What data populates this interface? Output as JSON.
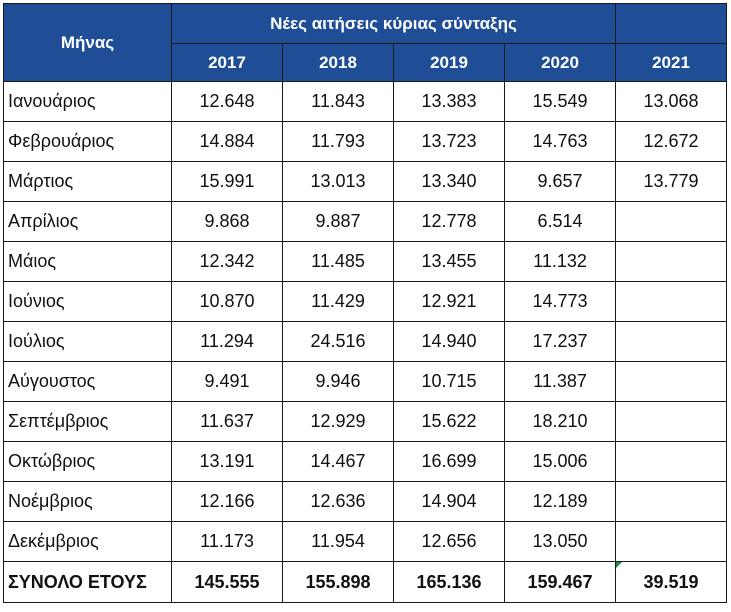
{
  "table": {
    "month_header": "Μήνας",
    "group_header": "Νέες αιτήσεις κύριας σύνταξης",
    "years": [
      "2017",
      "2018",
      "2019",
      "2020",
      "2021"
    ],
    "rows": [
      {
        "month": "Ιανουάριος",
        "values": [
          "12.648",
          "11.843",
          "13.383",
          "15.549",
          "13.068"
        ]
      },
      {
        "month": "Φεβρουάριος",
        "values": [
          "14.884",
          "11.793",
          "13.723",
          "14.763",
          "12.672"
        ]
      },
      {
        "month": "Μάρτιος",
        "values": [
          "15.991",
          "13.013",
          "13.340",
          "9.657",
          "13.779"
        ]
      },
      {
        "month": "Απρίλιος",
        "values": [
          "9.868",
          "9.887",
          "12.778",
          "6.514",
          ""
        ]
      },
      {
        "month": "Μάιος",
        "values": [
          "12.342",
          "11.485",
          "13.455",
          "11.132",
          ""
        ]
      },
      {
        "month": "Ιούνιος",
        "values": [
          "10.870",
          "11.429",
          "12.921",
          "14.773",
          ""
        ]
      },
      {
        "month": "Ιούλιος",
        "values": [
          "11.294",
          "24.516",
          "14.940",
          "17.237",
          ""
        ]
      },
      {
        "month": "Αύγουστος",
        "values": [
          "9.491",
          "9.946",
          "10.715",
          "11.387",
          ""
        ]
      },
      {
        "month": "Σεπτέμβριος",
        "values": [
          "11.637",
          "12.929",
          "15.622",
          "18.210",
          ""
        ]
      },
      {
        "month": "Οκτώβριος",
        "values": [
          "13.191",
          "14.467",
          "16.699",
          "15.006",
          ""
        ]
      },
      {
        "month": "Νοέμβριος",
        "values": [
          "12.166",
          "12.636",
          "14.904",
          "12.189",
          ""
        ]
      },
      {
        "month": "Δεκέμβριος",
        "values": [
          "11.173",
          "11.954",
          "12.656",
          "13.050",
          ""
        ]
      }
    ],
    "total": {
      "label": "ΣΥΝΟΛΟ ΕΤΟΥΣ",
      "values": [
        "145.555",
        "155.898",
        "165.136",
        "159.467",
        "39.519"
      ]
    }
  },
  "colors": {
    "header_background": "#1f4e96",
    "header_text": "#ffffff",
    "border": "#1a1a1a",
    "corner_marker": "#1e8a3a"
  }
}
